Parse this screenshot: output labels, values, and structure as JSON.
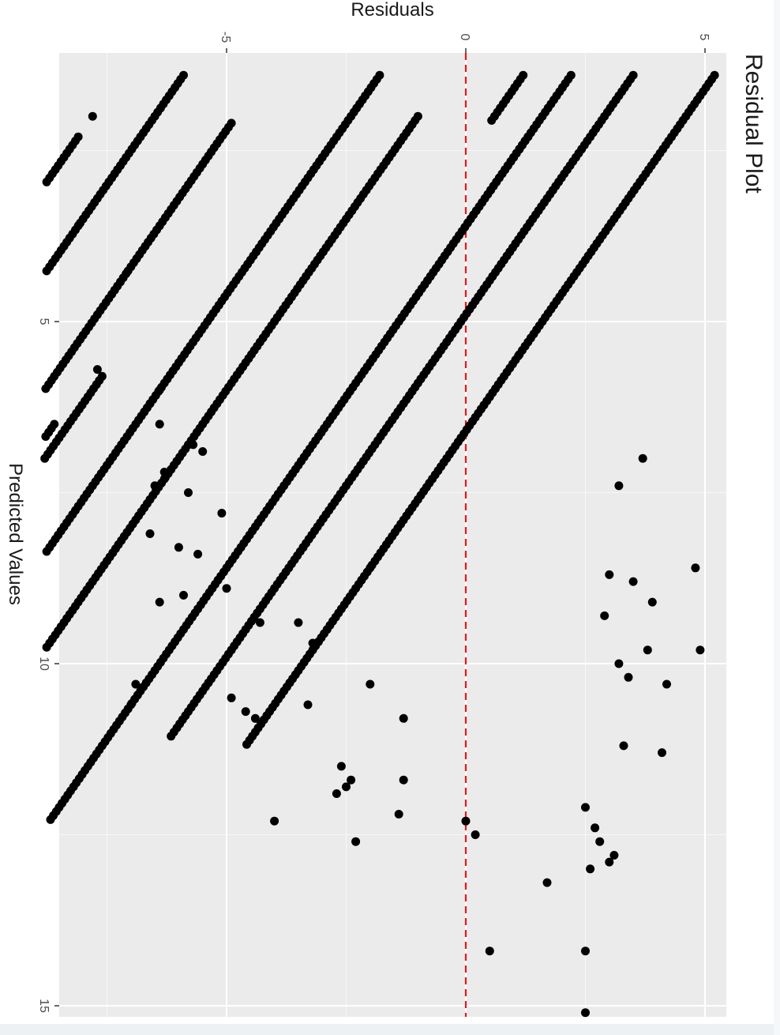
{
  "chart_data": {
    "type": "scatter",
    "title": "Residual Plot",
    "xlabel": "Predicted Values",
    "ylabel": "Residuals",
    "xlim": [
      0.8,
      15.4
    ],
    "ylim": [
      -8.8,
      5.5
    ],
    "x_ticks": [
      5,
      10,
      15
    ],
    "y_ticks": [
      -5,
      0,
      5
    ],
    "x_tick_labels": [
      "5",
      "10",
      "15"
    ],
    "y_tick_labels": [
      "-5",
      "0",
      "5"
    ],
    "grid": true,
    "orientation": "rotated 90° clockwise",
    "reference_line": {
      "y": 0,
      "color": "#e41a1c",
      "style": "dashed"
    },
    "series": [
      {
        "marker_color": "#000000",
        "bands": [
          {
            "x_start": 1.4,
            "x_end": 2.1,
            "residual_at_x0": 2.6
          },
          {
            "x_start": 2.3,
            "x_end": 3.1,
            "residual_at_x0": 3.6
          },
          {
            "x_start": 1.4,
            "x_end": 5.5,
            "residual_at_x0": 6.6
          },
          {
            "x_start": 5.5,
            "x_end": 8.6,
            "residual_at_x0": 6.6
          },
          {
            "x_start": 8.6,
            "x_end": 11.2,
            "residual_at_x0": 6.6
          },
          {
            "x_start": 1.4,
            "x_end": 8.3,
            "residual_at_x0": 4.9
          },
          {
            "x_start": 8.3,
            "x_end": 11.1,
            "residual_at_x0": 4.9
          },
          {
            "x_start": 1.4,
            "x_end": 10.6,
            "residual_at_x0": 3.6
          },
          {
            "x_start": 10.6,
            "x_end": 12.3,
            "residual_at_x0": 3.6
          },
          {
            "x_start": 2.0,
            "x_end": 7.3,
            "residual_at_x0": 1.0
          },
          {
            "x_start": 7.3,
            "x_end": 9.8,
            "residual_at_x0": 1.0
          },
          {
            "x_start": 1.4,
            "x_end": 6.2,
            "residual_at_x0": -0.4
          },
          {
            "x_start": 6.2,
            "x_end": 9.0,
            "residual_at_x0": -0.4
          },
          {
            "x_start": 2.1,
            "x_end": 4.3,
            "residual_at_x0": -2.8
          },
          {
            "x_start": 4.3,
            "x_end": 6.5,
            "residual_at_x0": -2.8
          },
          {
            "x_start": 1.4,
            "x_end": 3.6,
            "residual_at_x0": -4.5
          },
          {
            "x_start": 3.6,
            "x_end": 6.0,
            "residual_at_x0": -4.5
          },
          {
            "x_start": 2.6,
            "x_end": 4.5,
            "residual_at_x0": -6.7
          },
          {
            "x_start": 5.5,
            "x_end": 9.5,
            "residual_at_x0": -4.5
          },
          {
            "x_start": 7.3,
            "x_end": 9.7,
            "residual_at_x0": -5.8
          },
          {
            "x_start": 8.7,
            "x_end": 10.3,
            "residual_at_x0": -6.8
          },
          {
            "x_start": 2.3,
            "x_end": 3.5,
            "residual_at_x0": -5.8
          },
          {
            "x_start": 3.1,
            "x_end": 4.7,
            "residual_at_x0": -7.5
          },
          {
            "x_start": 5.8,
            "x_end": 9.8,
            "residual_at_x0": -1.8
          },
          {
            "x_start": 6.5,
            "x_end": 11.0,
            "residual_at_x0": -2.1
          },
          {
            "x_start": 9.3,
            "x_end": 12.6,
            "residual_at_x0": -0.9
          },
          {
            "x_start": 10.9,
            "x_end": 13.8,
            "residual_at_x0": 0.2
          }
        ],
        "extra_points": [
          {
            "x": 2.0,
            "y": -7.8
          },
          {
            "x": 5.7,
            "y": -7.7
          },
          {
            "x": 10.3,
            "y": -6.9
          },
          {
            "x": 7.4,
            "y": -6.5
          },
          {
            "x": 8.1,
            "y": -6.6
          },
          {
            "x": 9.1,
            "y": -6.4
          },
          {
            "x": 8.3,
            "y": -6.0
          },
          {
            "x": 9.0,
            "y": -5.9
          },
          {
            "x": 7.2,
            "y": -6.3
          },
          {
            "x": 6.5,
            "y": -6.4
          },
          {
            "x": 6.0,
            "y": -6.4
          },
          {
            "x": 7.5,
            "y": -5.8
          },
          {
            "x": 8.4,
            "y": -5.6
          },
          {
            "x": 6.8,
            "y": -5.7
          },
          {
            "x": 6.9,
            "y": -5.5
          },
          {
            "x": 8.9,
            "y": -5.0
          },
          {
            "x": 7.8,
            "y": -5.1
          },
          {
            "x": 9.4,
            "y": -4.3
          },
          {
            "x": 10.5,
            "y": -4.9
          },
          {
            "x": 10.7,
            "y": -4.6
          },
          {
            "x": 10.8,
            "y": -4.4
          },
          {
            "x": 12.3,
            "y": -4.0
          },
          {
            "x": 9.7,
            "y": -3.2
          },
          {
            "x": 10.6,
            "y": -3.3
          },
          {
            "x": 9.4,
            "y": -3.5
          },
          {
            "x": 11.5,
            "y": -2.6
          },
          {
            "x": 11.9,
            "y": -2.7
          },
          {
            "x": 11.8,
            "y": -2.5
          },
          {
            "x": 12.6,
            "y": -2.3
          },
          {
            "x": 11.7,
            "y": -2.4
          },
          {
            "x": 10.8,
            "y": -1.3
          },
          {
            "x": 11.7,
            "y": -1.3
          },
          {
            "x": 10.3,
            "y": -2.0
          },
          {
            "x": 12.2,
            "y": -1.4
          },
          {
            "x": 12.3,
            "y": 0.0
          },
          {
            "x": 12.5,
            "y": 0.2
          },
          {
            "x": 14.2,
            "y": 0.5
          },
          {
            "x": 14.2,
            "y": 2.5
          },
          {
            "x": 15.1,
            "y": 2.5
          },
          {
            "x": 13.2,
            "y": 1.7
          },
          {
            "x": 13.0,
            "y": 2.6
          },
          {
            "x": 12.1,
            "y": 2.5
          },
          {
            "x": 12.4,
            "y": 2.7
          },
          {
            "x": 12.6,
            "y": 2.8
          },
          {
            "x": 12.8,
            "y": 3.1
          },
          {
            "x": 12.9,
            "y": 3.0
          },
          {
            "x": 11.2,
            "y": 3.3
          },
          {
            "x": 11.3,
            "y": 4.1
          },
          {
            "x": 10.3,
            "y": 4.2
          },
          {
            "x": 10.2,
            "y": 3.4
          },
          {
            "x": 10.0,
            "y": 3.2
          },
          {
            "x": 9.8,
            "y": 3.8
          },
          {
            "x": 9.1,
            "y": 3.9
          },
          {
            "x": 8.8,
            "y": 3.5
          },
          {
            "x": 8.6,
            "y": 4.8
          },
          {
            "x": 9.8,
            "y": 4.9
          },
          {
            "x": 7.0,
            "y": 3.7
          },
          {
            "x": 7.4,
            "y": 3.2
          },
          {
            "x": 8.7,
            "y": 3.0
          },
          {
            "x": 9.3,
            "y": 2.9
          }
        ]
      }
    ]
  }
}
